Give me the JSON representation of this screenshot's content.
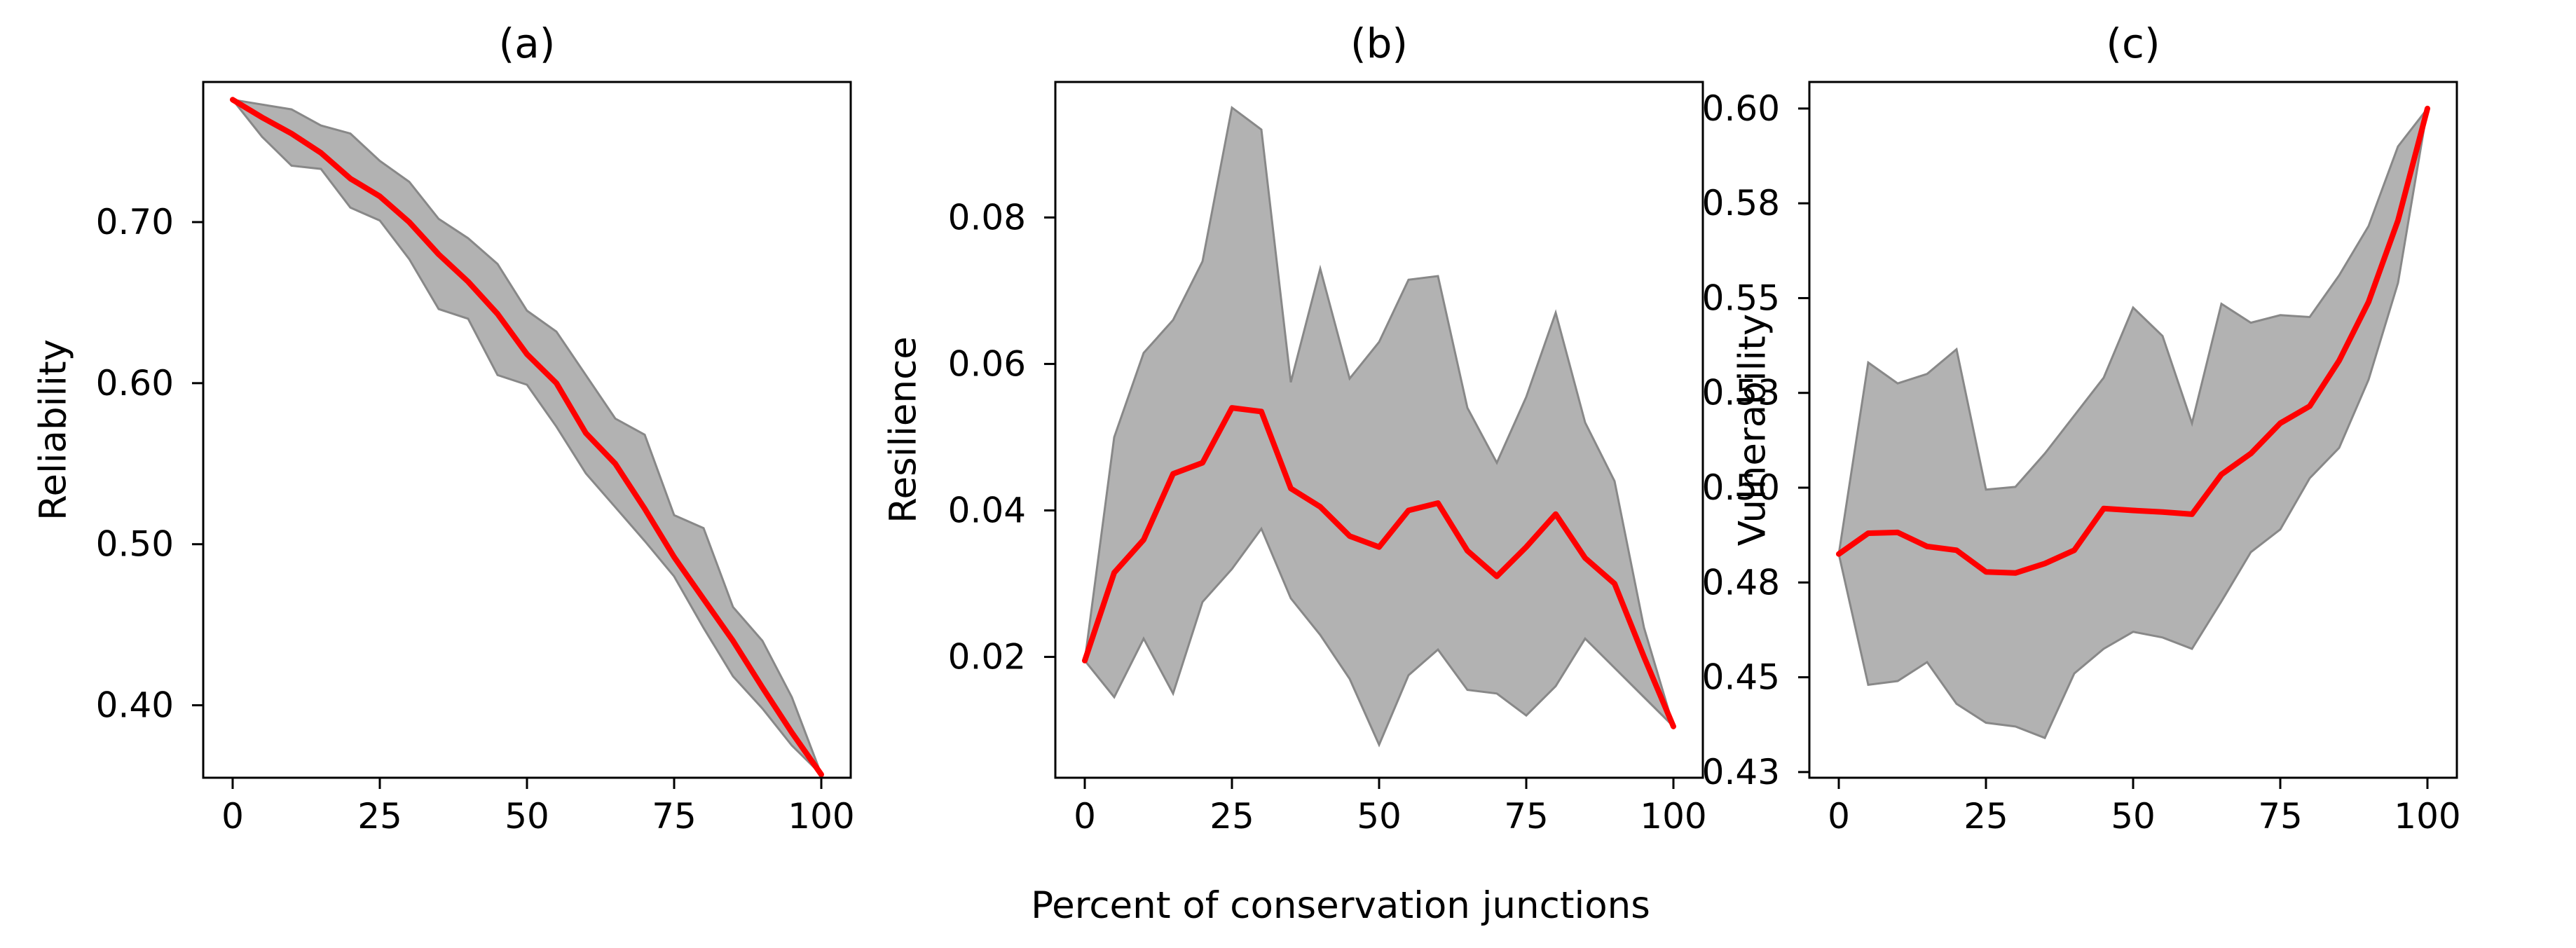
{
  "figure": {
    "xlabel": "Percent of conservation junctions"
  },
  "colors": {
    "line": "#ff0000",
    "band_fill": "#b2b2b2",
    "band_edge": "#888888",
    "axes": "#000000"
  },
  "chart_data": [
    {
      "type": "line",
      "title": "(a)",
      "xlabel": "",
      "ylabel": "Reliability",
      "xlim": [
        -5,
        105
      ],
      "ylim": [
        0.355,
        0.787
      ],
      "xticks": [
        0,
        25,
        50,
        75,
        100
      ],
      "xtick_labels": [
        "0",
        "25",
        "50",
        "75",
        "100"
      ],
      "yticks": [
        0.4,
        0.5,
        0.6,
        0.7
      ],
      "ytick_labels": [
        "0.40",
        "0.50",
        "0.60",
        "0.70"
      ],
      "x": [
        0,
        5,
        10,
        15,
        20,
        25,
        30,
        35,
        40,
        45,
        50,
        55,
        60,
        65,
        70,
        75,
        80,
        85,
        90,
        95,
        100
      ],
      "series": [
        {
          "name": "mean",
          "values": [
            0.776,
            0.765,
            0.755,
            0.743,
            0.727,
            0.716,
            0.7,
            0.68,
            0.663,
            0.643,
            0.618,
            0.6,
            0.569,
            0.55,
            0.522,
            0.492,
            0.466,
            0.44,
            0.411,
            0.383,
            0.357
          ]
        },
        {
          "name": "upper",
          "values": [
            0.776,
            0.773,
            0.77,
            0.76,
            0.755,
            0.738,
            0.725,
            0.702,
            0.69,
            0.674,
            0.645,
            0.632,
            0.605,
            0.578,
            0.568,
            0.518,
            0.51,
            0.461,
            0.44,
            0.405,
            0.357
          ]
        },
        {
          "name": "lower",
          "values": [
            0.776,
            0.753,
            0.735,
            0.733,
            0.709,
            0.701,
            0.677,
            0.646,
            0.64,
            0.605,
            0.599,
            0.573,
            0.544,
            0.523,
            0.502,
            0.48,
            0.448,
            0.418,
            0.398,
            0.375,
            0.357
          ]
        }
      ]
    },
    {
      "type": "line",
      "title": "(b)",
      "xlabel": "",
      "ylabel": "Resilience",
      "xlim": [
        -5,
        105
      ],
      "ylim": [
        0.0035,
        0.0985
      ],
      "xticks": [
        0,
        25,
        50,
        75,
        100
      ],
      "xtick_labels": [
        "0",
        "25",
        "50",
        "75",
        "100"
      ],
      "yticks": [
        0.02,
        0.04,
        0.06,
        0.08
      ],
      "ytick_labels": [
        "0.02",
        "0.04",
        "0.06",
        "0.08"
      ],
      "x": [
        0,
        5,
        10,
        15,
        20,
        25,
        30,
        35,
        40,
        45,
        50,
        55,
        60,
        65,
        70,
        75,
        80,
        85,
        90,
        95,
        100
      ],
      "series": [
        {
          "name": "mean",
          "values": [
            0.0195,
            0.0315,
            0.036,
            0.045,
            0.0465,
            0.054,
            0.0535,
            0.043,
            0.0405,
            0.0365,
            0.035,
            0.04,
            0.041,
            0.0345,
            0.031,
            0.035,
            0.0395,
            0.0335,
            0.03,
            0.02,
            0.0105
          ]
        },
        {
          "name": "upper",
          "values": [
            0.0195,
            0.05,
            0.0615,
            0.066,
            0.074,
            0.095,
            0.092,
            0.0575,
            0.073,
            0.058,
            0.063,
            0.0715,
            0.072,
            0.054,
            0.0465,
            0.0555,
            0.067,
            0.052,
            0.044,
            0.024,
            0.0105
          ]
        },
        {
          "name": "lower",
          "values": [
            0.0195,
            0.0145,
            0.0225,
            0.015,
            0.0275,
            0.032,
            0.0375,
            0.028,
            0.023,
            0.017,
            0.008,
            0.0175,
            0.021,
            0.0155,
            0.015,
            0.012,
            0.016,
            0.0225,
            0.0185,
            0.0145,
            0.0105
          ]
        }
      ]
    },
    {
      "type": "line",
      "title": "(c)",
      "xlabel": "",
      "ylabel": "Vulnerability",
      "xlim": [
        -5,
        105
      ],
      "ylim": [
        0.4285,
        0.612
      ],
      "xticks": [
        0,
        25,
        50,
        75,
        100
      ],
      "xtick_labels": [
        "0",
        "25",
        "50",
        "75",
        "100"
      ],
      "yticks": [
        0.43,
        0.455,
        0.48,
        0.505,
        0.53,
        0.555,
        0.58,
        0.605
      ],
      "ytick_labels": [
        "0.43",
        "0.45",
        "0.48",
        "0.50",
        "0.53",
        "0.55",
        "0.58",
        "0.60"
      ],
      "x": [
        0,
        5,
        10,
        15,
        20,
        25,
        30,
        35,
        40,
        45,
        50,
        55,
        60,
        65,
        70,
        75,
        80,
        85,
        90,
        95,
        100
      ],
      "series": [
        {
          "name": "mean",
          "values": [
            0.4875,
            0.493,
            0.4932,
            0.4895,
            0.4885,
            0.4828,
            0.4825,
            0.485,
            0.4885,
            0.4995,
            0.499,
            0.4986,
            0.498,
            0.5085,
            0.514,
            0.522,
            0.5265,
            0.5385,
            0.554,
            0.5755,
            0.605
          ]
        },
        {
          "name": "upper",
          "values": [
            0.4875,
            0.538,
            0.5325,
            0.535,
            0.5415,
            0.5045,
            0.5052,
            0.514,
            0.524,
            0.534,
            0.5525,
            0.545,
            0.522,
            0.5535,
            0.5485,
            0.5505,
            0.55,
            0.561,
            0.574,
            0.595,
            0.605
          ]
        },
        {
          "name": "lower",
          "values": [
            0.4875,
            0.453,
            0.454,
            0.459,
            0.448,
            0.443,
            0.442,
            0.439,
            0.456,
            0.4625,
            0.467,
            0.4655,
            0.4625,
            0.475,
            0.488,
            0.494,
            0.5075,
            0.5155,
            0.5335,
            0.559,
            0.605
          ]
        }
      ]
    }
  ]
}
